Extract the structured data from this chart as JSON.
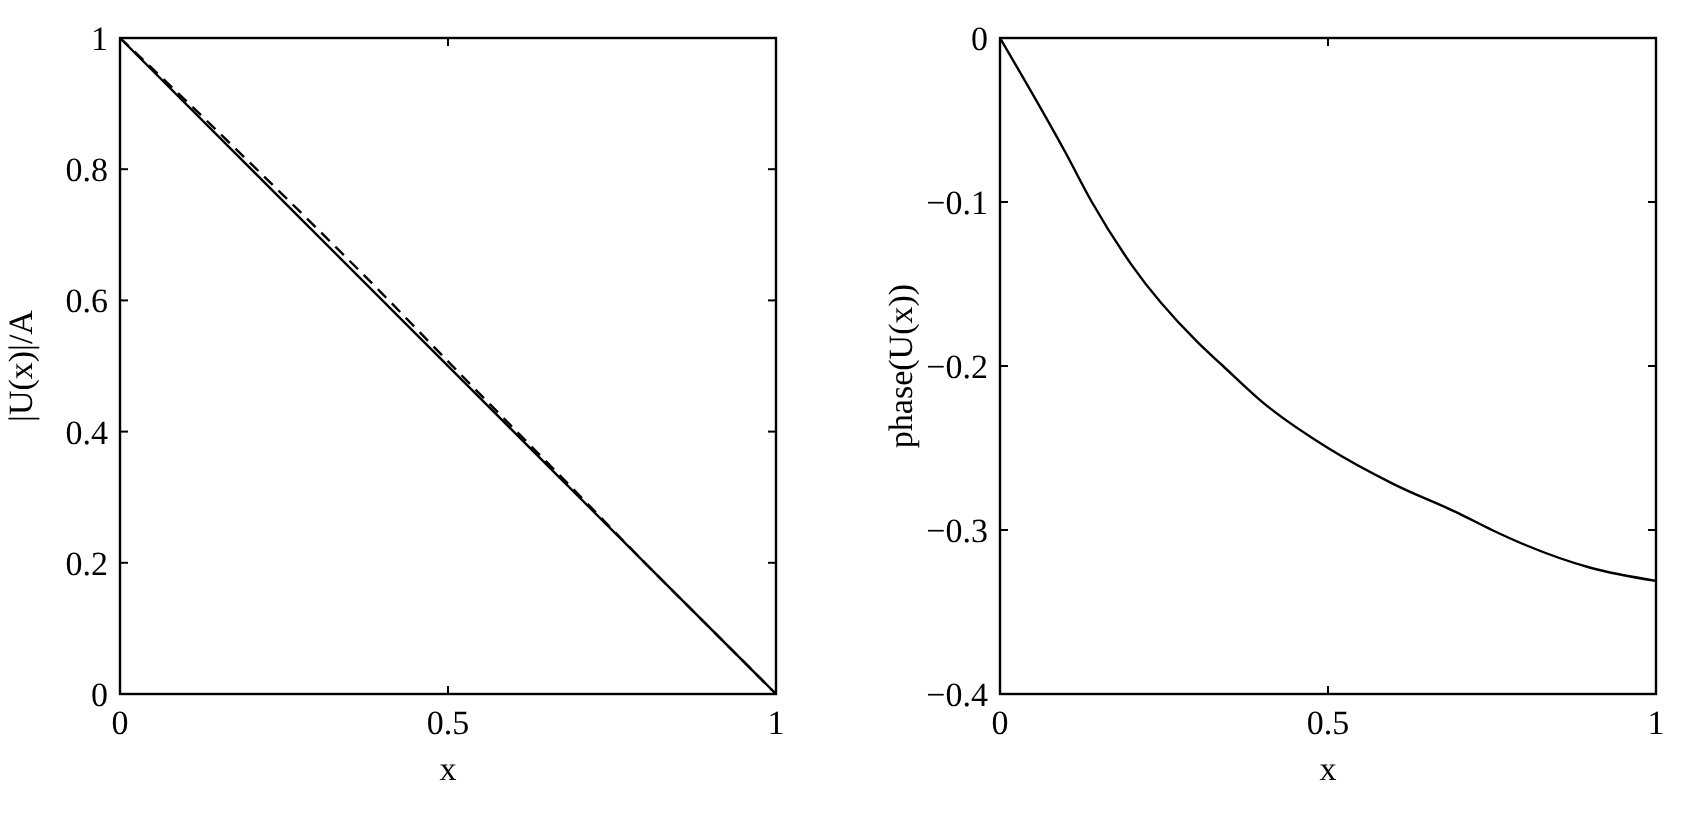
{
  "chart_data": [
    {
      "type": "line",
      "xlabel": "x",
      "ylabel": "|U(x)|/A",
      "xlim": [
        0,
        1
      ],
      "ylim": [
        0,
        1
      ],
      "xticks": [
        0,
        0.5,
        1
      ],
      "yticks": [
        0,
        0.2,
        0.4,
        0.6,
        0.8,
        1
      ],
      "grid": false,
      "series": [
        {
          "color": "#000000",
          "line_style": "solid",
          "x": [
            0,
            1
          ],
          "values": [
            1,
            0
          ]
        },
        {
          "color": "#000000",
          "line_style": "dashed",
          "x": [
            0,
            0.1,
            0.2,
            0.3,
            0.4,
            0.5,
            0.6,
            0.7,
            0.8,
            0.9,
            1
          ],
          "values": [
            1,
            0.905,
            0.808,
            0.71,
            0.61,
            0.507,
            0.405,
            0.303,
            0.2,
            0.1,
            0
          ]
        }
      ]
    },
    {
      "type": "line",
      "xlabel": "x",
      "ylabel": "phase(U(x))",
      "xlim": [
        0,
        1
      ],
      "ylim": [
        -0.4,
        0
      ],
      "xticks": [
        0,
        0.5,
        1
      ],
      "yticks": [
        {
          "value": -0.4,
          "label": "−0.4"
        },
        {
          "value": -0.3,
          "label": "−0.3"
        },
        {
          "value": -0.2,
          "label": "−0.2"
        },
        {
          "value": -0.1,
          "label": "−0.1"
        },
        0
      ],
      "grid": false,
      "series": [
        {
          "color": "#000000",
          "line_style": "solid",
          "x": [
            0,
            0.1,
            0.14,
            0.2,
            0.3,
            0.34,
            0.4,
            0.5,
            0.6,
            0.7,
            0.75,
            0.8,
            0.9,
            1
          ],
          "values": [
            0,
            -0.07,
            -0.1,
            -0.138,
            -0.185,
            -0.2,
            -0.222,
            -0.25,
            -0.272,
            -0.29,
            -0.3,
            -0.309,
            -0.323,
            -0.331
          ]
        }
      ]
    }
  ]
}
